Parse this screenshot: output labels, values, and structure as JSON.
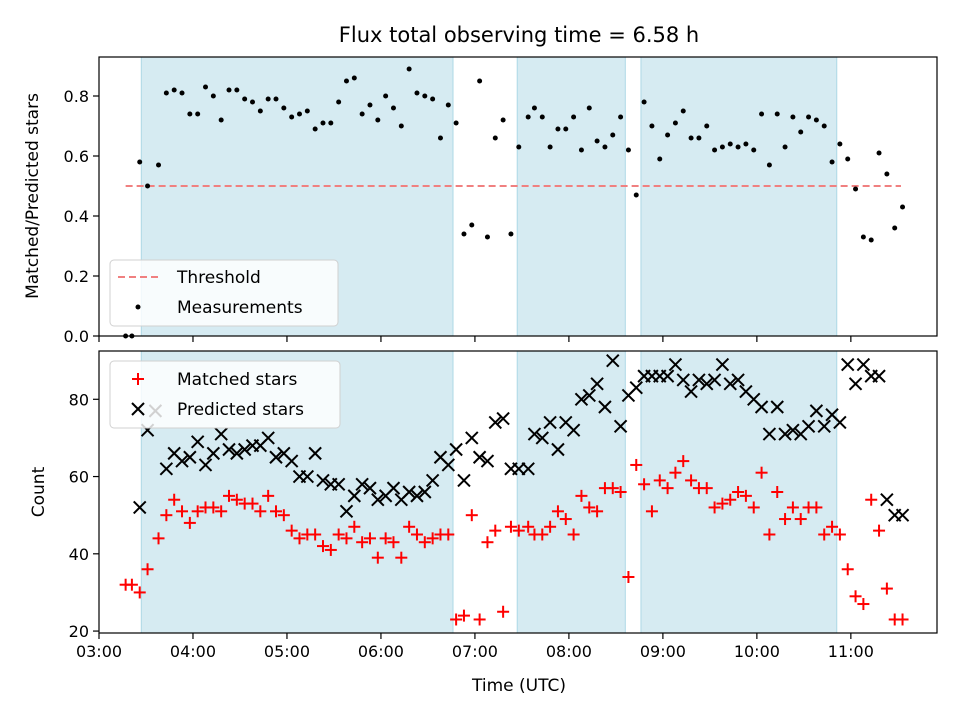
{
  "chart_data": [
    {
      "type": "scatter",
      "title": "Flux total observing time = 6.58 h",
      "ylabel": "Matched/Predicted stars",
      "xlabel": "",
      "xlim": [
        "03:00",
        "11:55"
      ],
      "ylim": [
        0,
        0.93
      ],
      "yticks": [
        "0.0",
        "0.2",
        "0.4",
        "0.6",
        "0.8"
      ],
      "shaded_intervals": [
        [
          "03:27",
          "06:46"
        ],
        [
          "07:27",
          "08:36"
        ],
        [
          "08:46",
          "10:51"
        ]
      ],
      "shade_color": "#add8e6",
      "legend_position": "lower-left",
      "series": [
        {
          "name": "Threshold",
          "kind": "line",
          "color": "#f08080",
          "x": [
            "03:17",
            "11:32"
          ],
          "y": [
            0.5,
            0.5
          ]
        },
        {
          "name": "Measurements",
          "kind": "points",
          "color": "#000000",
          "x": [
            "03:17",
            "03:21",
            "03:26",
            "03:31",
            "03:38",
            "03:43",
            "03:48",
            "03:53",
            "03:58",
            "04:03",
            "04:08",
            "04:13",
            "04:18",
            "04:23",
            "04:28",
            "04:33",
            "04:38",
            "04:43",
            "04:48",
            "04:53",
            "04:58",
            "05:03",
            "05:08",
            "05:13",
            "05:18",
            "05:23",
            "05:28",
            "05:33",
            "05:38",
            "05:43",
            "05:48",
            "05:53",
            "05:58",
            "06:03",
            "06:08",
            "06:13",
            "06:18",
            "06:23",
            "06:28",
            "06:33",
            "06:38",
            "06:43",
            "06:48",
            "06:53",
            "06:58",
            "07:03",
            "07:08",
            "07:13",
            "07:18",
            "07:23",
            "07:28",
            "07:34",
            "07:38",
            "07:43",
            "07:48",
            "07:53",
            "07:58",
            "08:03",
            "08:08",
            "08:13",
            "08:18",
            "08:23",
            "08:28",
            "08:33",
            "08:38",
            "08:43",
            "08:48",
            "08:53",
            "08:58",
            "09:03",
            "09:08",
            "09:13",
            "09:18",
            "09:23",
            "09:28",
            "09:33",
            "09:38",
            "09:43",
            "09:48",
            "09:53",
            "09:58",
            "10:03",
            "10:08",
            "10:13",
            "10:18",
            "10:23",
            "10:28",
            "10:33",
            "10:38",
            "10:43",
            "10:48",
            "10:53",
            "10:58",
            "11:03",
            "11:08",
            "11:13",
            "11:18",
            "11:23",
            "11:28",
            "11:33"
          ],
          "y": [
            0.0,
            0.0,
            0.58,
            0.5,
            0.57,
            0.81,
            0.82,
            0.81,
            0.74,
            0.74,
            0.83,
            0.8,
            0.72,
            0.82,
            0.82,
            0.79,
            0.78,
            0.75,
            0.79,
            0.79,
            0.76,
            0.73,
            0.74,
            0.75,
            0.69,
            0.71,
            0.71,
            0.78,
            0.85,
            0.86,
            0.74,
            0.77,
            0.72,
            0.8,
            0.76,
            0.7,
            0.89,
            0.81,
            0.8,
            0.79,
            0.66,
            0.77,
            0.71,
            0.34,
            0.37,
            0.85,
            0.33,
            0.66,
            0.72,
            0.34,
            0.63,
            0.73,
            0.76,
            0.73,
            0.63,
            0.69,
            0.69,
            0.73,
            0.62,
            0.76,
            0.65,
            0.63,
            0.67,
            0.73,
            0.62,
            0.47,
            0.78,
            0.7,
            0.59,
            0.67,
            0.71,
            0.75,
            0.66,
            0.66,
            0.7,
            0.62,
            0.63,
            0.64,
            0.63,
            0.64,
            0.62,
            0.74,
            0.57,
            0.74,
            0.63,
            0.73,
            0.68,
            0.73,
            0.72,
            0.7,
            0.58,
            0.64,
            0.59,
            0.49,
            0.33,
            0.32,
            0.61,
            0.54,
            0.36,
            0.43
          ]
        }
      ]
    },
    {
      "type": "scatter",
      "title": "",
      "ylabel": "Count",
      "xlabel": "Time (UTC)",
      "xlim": [
        "03:00",
        "11:55"
      ],
      "ylim": [
        19.5,
        92.5
      ],
      "yticks": [
        "20",
        "40",
        "60",
        "80"
      ],
      "xticks": [
        "03:00",
        "04:00",
        "05:00",
        "06:00",
        "07:00",
        "08:00",
        "09:00",
        "10:00",
        "11:00"
      ],
      "shaded_intervals": [
        [
          "03:27",
          "06:46"
        ],
        [
          "07:27",
          "08:36"
        ],
        [
          "08:46",
          "10:51"
        ]
      ],
      "shade_color": "#add8e6",
      "legend_position": "upper-left",
      "series": [
        {
          "name": "Matched stars",
          "kind": "plus",
          "color": "#ff0000",
          "x": [
            "03:17",
            "03:21",
            "03:26",
            "03:31",
            "03:38",
            "03:43",
            "03:48",
            "03:53",
            "03:58",
            "04:03",
            "04:08",
            "04:13",
            "04:18",
            "04:23",
            "04:28",
            "04:33",
            "04:38",
            "04:43",
            "04:48",
            "04:53",
            "04:58",
            "05:03",
            "05:08",
            "05:13",
            "05:18",
            "05:23",
            "05:28",
            "05:33",
            "05:38",
            "05:43",
            "05:48",
            "05:53",
            "05:58",
            "06:03",
            "06:08",
            "06:13",
            "06:18",
            "06:23",
            "06:28",
            "06:33",
            "06:38",
            "06:43",
            "06:48",
            "06:53",
            "06:58",
            "07:03",
            "07:08",
            "07:13",
            "07:18",
            "07:23",
            "07:28",
            "07:34",
            "07:38",
            "07:43",
            "07:48",
            "07:53",
            "07:58",
            "08:03",
            "08:08",
            "08:13",
            "08:18",
            "08:23",
            "08:28",
            "08:33",
            "08:38",
            "08:43",
            "08:48",
            "08:53",
            "08:58",
            "09:03",
            "09:08",
            "09:13",
            "09:18",
            "09:23",
            "09:28",
            "09:33",
            "09:38",
            "09:43",
            "09:48",
            "09:53",
            "09:58",
            "10:03",
            "10:08",
            "10:13",
            "10:18",
            "10:23",
            "10:28",
            "10:33",
            "10:38",
            "10:43",
            "10:48",
            "10:53",
            "10:58",
            "11:03",
            "11:08",
            "11:13",
            "11:18",
            "11:23",
            "11:28",
            "11:33"
          ],
          "y": [
            32,
            32,
            30,
            36,
            44,
            50,
            54,
            51,
            48,
            51,
            52,
            52,
            51,
            55,
            54,
            53,
            53,
            51,
            55,
            51,
            50,
            46,
            44,
            45,
            45,
            42,
            41,
            45,
            44,
            47,
            43,
            44,
            39,
            44,
            43,
            39,
            47,
            45,
            43,
            44,
            45,
            45,
            23,
            24,
            50,
            23,
            43,
            46,
            25,
            47,
            46,
            47,
            45,
            45,
            47,
            51,
            49,
            45,
            55,
            52,
            51,
            57,
            57,
            56,
            34,
            63,
            58,
            51,
            59,
            57,
            61,
            64,
            59,
            57,
            57,
            52,
            53,
            54,
            56,
            55,
            52,
            61,
            45,
            56,
            49,
            52,
            49,
            52,
            52,
            45,
            47,
            45,
            36,
            29,
            27,
            54,
            46,
            31,
            23,
            23
          ]
        },
        {
          "name": "Predicted stars",
          "kind": "x",
          "color": "#000000",
          "x": [
            "03:26",
            "03:31",
            "03:36",
            "03:43",
            "03:48",
            "03:53",
            "03:58",
            "04:03",
            "04:08",
            "04:13",
            "04:18",
            "04:23",
            "04:28",
            "04:33",
            "04:38",
            "04:43",
            "04:48",
            "04:53",
            "04:58",
            "05:03",
            "05:08",
            "05:13",
            "05:18",
            "05:23",
            "05:28",
            "05:33",
            "05:38",
            "05:43",
            "05:48",
            "05:53",
            "05:58",
            "06:03",
            "06:08",
            "06:13",
            "06:18",
            "06:23",
            "06:28",
            "06:33",
            "06:38",
            "06:43",
            "06:48",
            "06:53",
            "06:58",
            "07:03",
            "07:08",
            "07:13",
            "07:18",
            "07:23",
            "07:28",
            "07:34",
            "07:38",
            "07:43",
            "07:48",
            "07:53",
            "07:58",
            "08:03",
            "08:08",
            "08:13",
            "08:18",
            "08:23",
            "08:28",
            "08:33",
            "08:38",
            "08:43",
            "08:48",
            "08:53",
            "08:58",
            "09:03",
            "09:08",
            "09:13",
            "09:18",
            "09:23",
            "09:28",
            "09:33",
            "09:38",
            "09:43",
            "09:48",
            "09:53",
            "09:58",
            "10:03",
            "10:08",
            "10:13",
            "10:18",
            "10:23",
            "10:28",
            "10:33",
            "10:38",
            "10:43",
            "10:48",
            "10:53",
            "10:58",
            "11:03",
            "11:08",
            "11:13",
            "11:18",
            "11:23",
            "11:28",
            "11:33"
          ],
          "y": [
            52,
            72,
            77,
            62,
            66,
            64,
            65,
            69,
            63,
            66,
            71,
            67,
            66,
            67,
            68,
            68,
            70,
            65,
            66,
            64,
            60,
            60,
            66,
            59,
            58,
            58,
            51,
            55,
            58,
            57,
            54,
            55,
            57,
            54,
            56,
            55,
            56,
            59,
            65,
            63,
            67,
            59,
            70,
            65,
            64,
            74,
            75,
            62,
            62,
            62,
            71,
            70,
            74,
            67,
            74,
            72,
            80,
            81,
            84,
            78,
            90,
            73,
            81,
            83,
            86,
            86,
            86,
            86,
            89,
            85,
            82,
            85,
            84,
            85,
            89,
            84,
            85,
            82,
            80,
            78,
            71,
            78,
            71,
            72,
            71,
            73,
            77,
            73,
            76,
            74,
            89,
            84,
            89,
            86,
            86,
            54,
            50,
            50
          ]
        }
      ]
    }
  ]
}
